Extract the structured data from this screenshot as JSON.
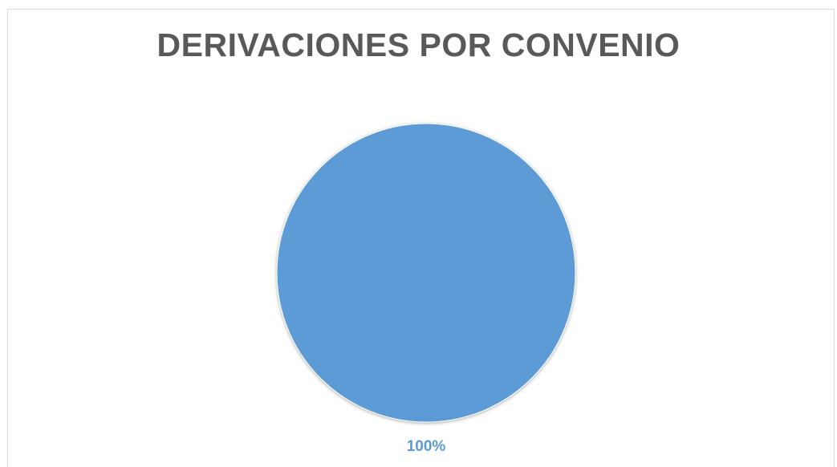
{
  "chart_data": {
    "type": "pie",
    "title": "DERIVACIONES POR CONVENIO",
    "slices": [
      {
        "value": 100,
        "label": "100%",
        "color": "#5b9bd5"
      }
    ],
    "legend": "none"
  },
  "colors": {
    "title": "#595959",
    "border": "#d9d9d9",
    "slice": "#5b9bd5",
    "label": "#5b9bd5"
  }
}
